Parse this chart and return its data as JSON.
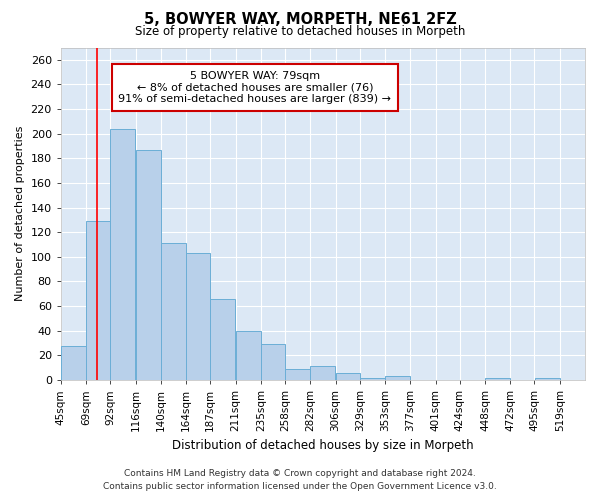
{
  "title": "5, BOWYER WAY, MORPETH, NE61 2FZ",
  "subtitle": "Size of property relative to detached houses in Morpeth",
  "xlabel": "Distribution of detached houses by size in Morpeth",
  "ylabel": "Number of detached properties",
  "footer_line1": "Contains HM Land Registry data © Crown copyright and database right 2024.",
  "footer_line2": "Contains public sector information licensed under the Open Government Licence v3.0.",
  "annotation_line1": "5 BOWYER WAY: 79sqm",
  "annotation_line2": "← 8% of detached houses are smaller (76)",
  "annotation_line3": "91% of semi-detached houses are larger (839) →",
  "bar_left_edges": [
    45,
    69,
    92,
    116,
    140,
    164,
    187,
    211,
    235,
    258,
    282,
    306,
    329,
    353,
    377,
    401,
    424,
    448,
    472,
    495
  ],
  "bar_widths": [
    24,
    23,
    24,
    24,
    24,
    23,
    24,
    24,
    23,
    24,
    24,
    23,
    24,
    24,
    24,
    23,
    24,
    24,
    23,
    24
  ],
  "bar_heights": [
    28,
    129,
    204,
    187,
    111,
    103,
    66,
    40,
    29,
    9,
    11,
    6,
    2,
    3,
    0,
    0,
    0,
    2,
    0,
    2
  ],
  "bar_color": "#b8d0ea",
  "bar_edge_color": "#6baed6",
  "bar_edge_width": 0.7,
  "tick_labels": [
    "45sqm",
    "69sqm",
    "92sqm",
    "116sqm",
    "140sqm",
    "164sqm",
    "187sqm",
    "211sqm",
    "235sqm",
    "258sqm",
    "282sqm",
    "306sqm",
    "329sqm",
    "353sqm",
    "377sqm",
    "401sqm",
    "424sqm",
    "448sqm",
    "472sqm",
    "495sqm",
    "519sqm"
  ],
  "red_line_x": 79,
  "ylim": [
    0,
    270
  ],
  "yticks": [
    0,
    20,
    40,
    60,
    80,
    100,
    120,
    140,
    160,
    180,
    200,
    220,
    240,
    260
  ],
  "fig_bg_color": "#ffffff",
  "plot_bg_color": "#dce8f5",
  "grid_color": "#ffffff",
  "title_fontsize": 10.5,
  "subtitle_fontsize": 8.5,
  "annotation_box_color": "#ffffff",
  "annotation_box_edge_color": "#cc0000",
  "annotation_fontsize": 8,
  "xlabel_fontsize": 8.5,
  "ylabel_fontsize": 8,
  "tick_fontsize": 7.5,
  "footer_fontsize": 6.5
}
